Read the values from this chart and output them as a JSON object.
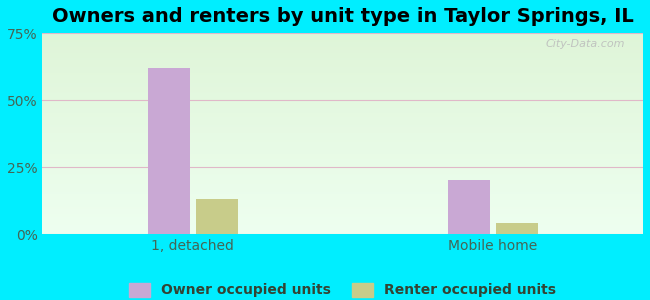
{
  "title": "Owners and renters by unit type in Taylor Springs, IL",
  "categories": [
    "1, detached",
    "Mobile home"
  ],
  "owner_values": [
    62,
    20
  ],
  "renter_values": [
    13,
    4
  ],
  "owner_color": "#c9a8d4",
  "renter_color": "#c8cc8a",
  "ylim": [
    0,
    75
  ],
  "yticks": [
    0,
    25,
    50,
    75
  ],
  "ytick_labels": [
    "0%",
    "25%",
    "50%",
    "75%"
  ],
  "outer_bg": "#00eeff",
  "bar_width": 0.28,
  "group_centers": [
    1.0,
    3.0
  ],
  "xlim": [
    0.0,
    4.0
  ],
  "watermark": "City-Data.com",
  "legend_owner": "Owner occupied units",
  "legend_renter": "Renter occupied units",
  "title_fontsize": 14,
  "tick_fontsize": 10,
  "legend_fontsize": 10,
  "grid_color": "#e0b8c8",
  "tick_label_color": "#446655",
  "bg_top_color": "#dff5d8",
  "bg_bottom_color": "#eefff0"
}
